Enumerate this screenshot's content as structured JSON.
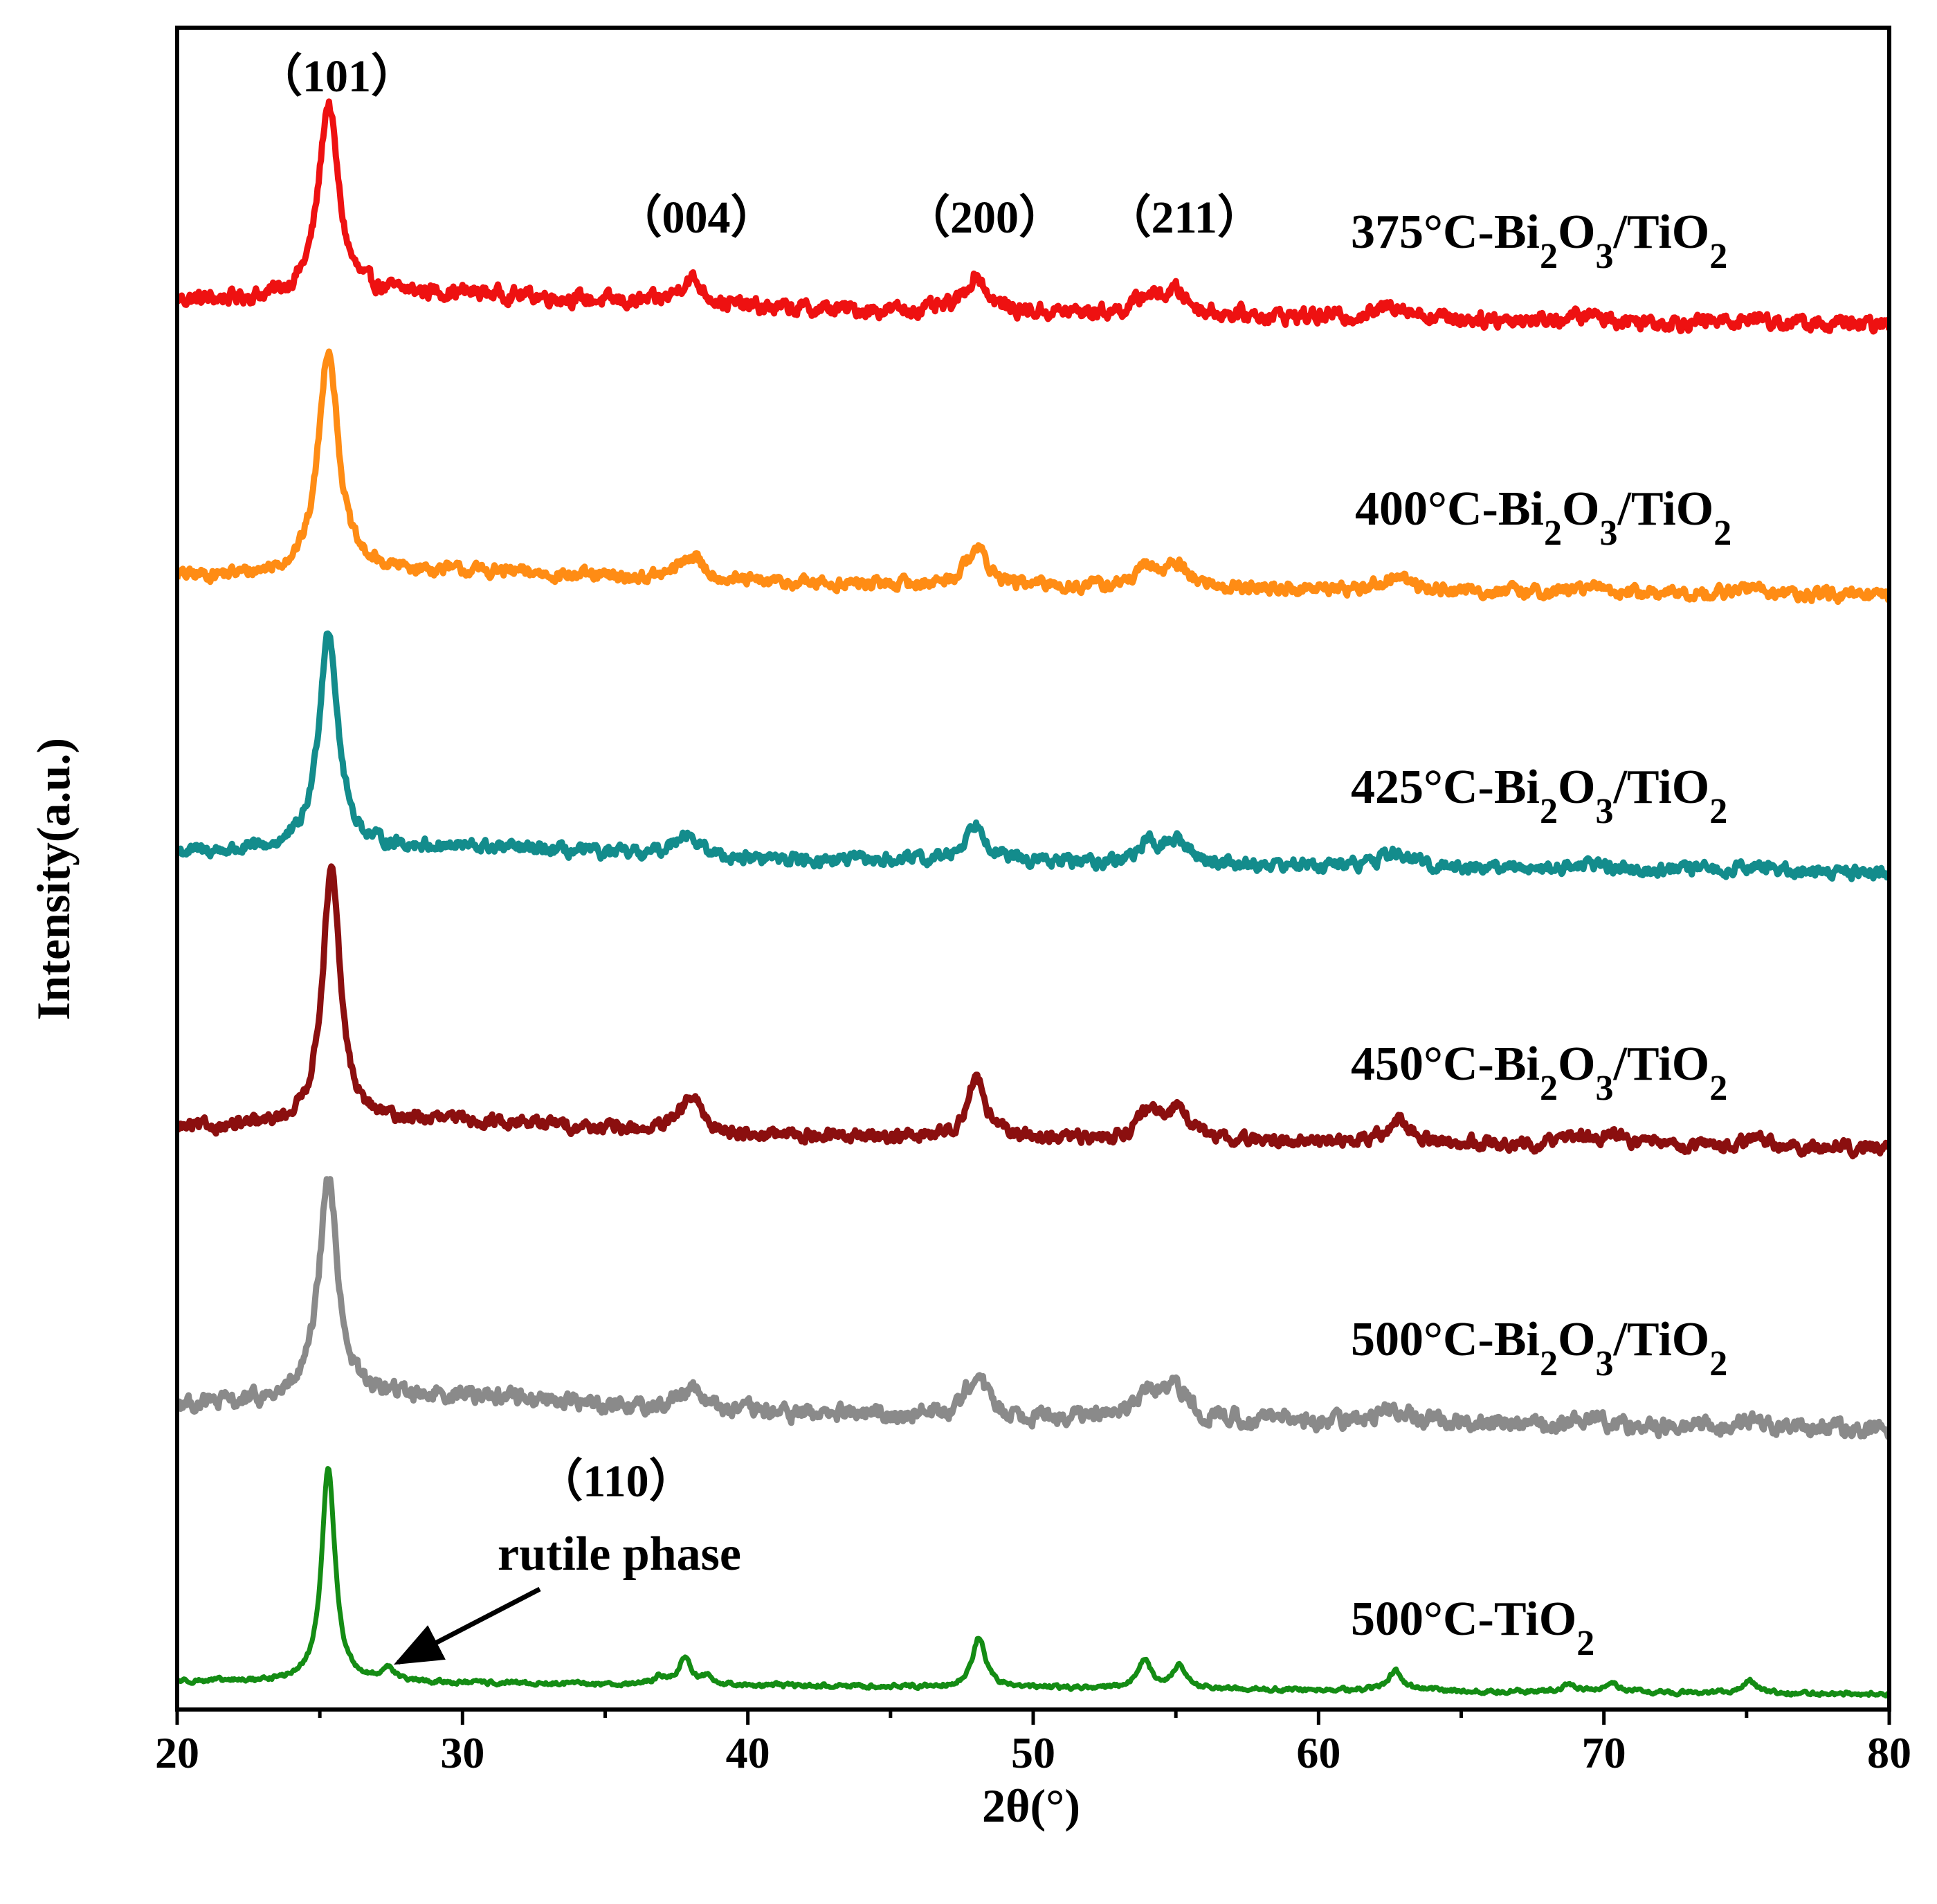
{
  "chart_data": {
    "type": "line",
    "title": "",
    "xlabel": "2θ(°)",
    "ylabel": "Intensity(a.u.)",
    "xlim": [
      20,
      80
    ],
    "xticks": [
      20,
      30,
      40,
      50,
      60,
      70,
      80
    ],
    "xtick_labels": [
      "20",
      "30",
      "40",
      "50",
      "60",
      "70",
      "80"
    ],
    "ylim": [
      0,
      6
    ],
    "grid": false,
    "series": [
      {
        "name": "375°C-Bi2O3/TiO2",
        "label_main": "375°C-Bi",
        "label_sub1": "2",
        "label_mid": "O",
        "label_sub2": "3",
        "label_tail": "/TiO",
        "label_sub3": "2",
        "color": "#ee1111",
        "offset": 5,
        "noise": 0.022,
        "baseline_slope": -0.0015,
        "humps": [
          {
            "x": 30,
            "h": 0.04,
            "w": 4
          }
        ],
        "peaks": [
          {
            "x": 25.3,
            "h": 0.7,
            "w": 0.42
          },
          {
            "x": 38.0,
            "h": 0.1,
            "w": 0.55
          },
          {
            "x": 48.0,
            "h": 0.13,
            "w": 0.45
          },
          {
            "x": 54.0,
            "h": 0.06,
            "w": 0.45
          },
          {
            "x": 55.0,
            "h": 0.08,
            "w": 0.55
          },
          {
            "x": 62.7,
            "h": 0.05,
            "w": 0.6
          },
          {
            "x": 69.5,
            "h": 0.02,
            "w": 0.6
          },
          {
            "x": 75.2,
            "h": 0.02,
            "w": 0.6
          }
        ]
      },
      {
        "name": "400°C-Bi2O3/TiO2",
        "label_main": "400°C-Bi",
        "label_sub1": "2",
        "label_mid": "O",
        "label_sub2": "3",
        "label_tail": "/TiO",
        "label_sub3": "2",
        "color": "#ff8c14",
        "offset": 4,
        "noise": 0.018,
        "baseline_slope": -0.0012,
        "humps": [
          {
            "x": 30,
            "h": 0.03,
            "w": 4
          }
        ],
        "peaks": [
          {
            "x": 25.3,
            "h": 0.82,
            "w": 0.42
          },
          {
            "x": 38.0,
            "h": 0.09,
            "w": 0.55
          },
          {
            "x": 48.0,
            "h": 0.14,
            "w": 0.45
          },
          {
            "x": 54.0,
            "h": 0.06,
            "w": 0.45
          },
          {
            "x": 55.0,
            "h": 0.08,
            "w": 0.55
          },
          {
            "x": 62.7,
            "h": 0.05,
            "w": 0.6
          },
          {
            "x": 69.5,
            "h": 0.02,
            "w": 0.6
          },
          {
            "x": 75.2,
            "h": 0.025,
            "w": 0.6
          }
        ]
      },
      {
        "name": "425°C-Bi2O3/TiO2",
        "label_main": "425°C-Bi",
        "label_sub1": "2",
        "label_mid": "O",
        "label_sub2": "3",
        "label_tail": "/TiO",
        "label_sub3": "2",
        "color": "#138c8c",
        "offset": 3,
        "noise": 0.018,
        "baseline_slope": -0.0012,
        "humps": [
          {
            "x": 30,
            "h": 0.03,
            "w": 4
          }
        ],
        "peaks": [
          {
            "x": 25.3,
            "h": 0.8,
            "w": 0.4
          },
          {
            "x": 37.8,
            "h": 0.09,
            "w": 0.5
          },
          {
            "x": 48.0,
            "h": 0.14,
            "w": 0.45
          },
          {
            "x": 54.0,
            "h": 0.06,
            "w": 0.45
          },
          {
            "x": 55.0,
            "h": 0.08,
            "w": 0.55
          },
          {
            "x": 62.7,
            "h": 0.05,
            "w": 0.6
          },
          {
            "x": 69.5,
            "h": 0.02,
            "w": 0.6
          },
          {
            "x": 75.2,
            "h": 0.02,
            "w": 0.6
          }
        ]
      },
      {
        "name": "450°C-Bi2O3/TiO2",
        "label_main": "450°C-Bi",
        "label_sub1": "2",
        "label_mid": "O",
        "label_sub2": "3",
        "label_tail": "/TiO",
        "label_sub3": "2",
        "color": "#8b0f0f",
        "offset": 2,
        "noise": 0.018,
        "baseline_slope": -0.0012,
        "humps": [
          {
            "x": 30,
            "h": 0.04,
            "w": 4
          }
        ],
        "peaks": [
          {
            "x": 25.4,
            "h": 0.92,
            "w": 0.38
          },
          {
            "x": 38.0,
            "h": 0.13,
            "w": 0.45
          },
          {
            "x": 48.0,
            "h": 0.22,
            "w": 0.38
          },
          {
            "x": 54.0,
            "h": 0.1,
            "w": 0.4
          },
          {
            "x": 55.1,
            "h": 0.12,
            "w": 0.45
          },
          {
            "x": 62.8,
            "h": 0.08,
            "w": 0.5
          },
          {
            "x": 69.0,
            "h": 0.03,
            "w": 0.5
          },
          {
            "x": 70.3,
            "h": 0.04,
            "w": 0.5
          },
          {
            "x": 75.2,
            "h": 0.03,
            "w": 0.5
          }
        ]
      },
      {
        "name": "500°C-Bi2O3/TiO2",
        "label_main": "500°C-Bi",
        "label_sub1": "2",
        "label_mid": "O",
        "label_sub2": "3",
        "label_tail": "/TiO",
        "label_sub3": "2",
        "color": "#8a8a8a",
        "offset": 1,
        "noise": 0.024,
        "baseline_slope": -0.0015,
        "humps": [
          {
            "x": 30,
            "h": 0.05,
            "w": 4
          }
        ],
        "peaks": [
          {
            "x": 25.3,
            "h": 0.8,
            "w": 0.4
          },
          {
            "x": 38.0,
            "h": 0.09,
            "w": 0.5
          },
          {
            "x": 48.0,
            "h": 0.16,
            "w": 0.42
          },
          {
            "x": 54.0,
            "h": 0.09,
            "w": 0.45
          },
          {
            "x": 55.0,
            "h": 0.11,
            "w": 0.5
          },
          {
            "x": 62.7,
            "h": 0.05,
            "w": 0.55
          },
          {
            "x": 69.5,
            "h": 0.02,
            "w": 0.6
          },
          {
            "x": 75.2,
            "h": 0.02,
            "w": 0.6
          }
        ]
      },
      {
        "name": "500°C-TiO2",
        "label_main": "500°C-TiO",
        "label_sub1": "2",
        "label_mid": "",
        "label_sub2": "",
        "label_tail": "",
        "label_sub3": "",
        "color": "#148c14",
        "offset": 0,
        "noise": 0.006,
        "baseline_slope": -0.0008,
        "humps": [],
        "peaks": [
          {
            "x": 25.3,
            "h": 0.78,
            "w": 0.28
          },
          {
            "x": 27.4,
            "h": 0.05,
            "w": 0.25
          },
          {
            "x": 36.9,
            "h": 0.03,
            "w": 0.22
          },
          {
            "x": 37.8,
            "h": 0.1,
            "w": 0.25
          },
          {
            "x": 38.6,
            "h": 0.03,
            "w": 0.22
          },
          {
            "x": 48.1,
            "h": 0.18,
            "w": 0.28
          },
          {
            "x": 53.9,
            "h": 0.1,
            "w": 0.28
          },
          {
            "x": 55.1,
            "h": 0.08,
            "w": 0.28
          },
          {
            "x": 62.7,
            "h": 0.07,
            "w": 0.3
          },
          {
            "x": 68.8,
            "h": 0.03,
            "w": 0.28
          },
          {
            "x": 70.3,
            "h": 0.03,
            "w": 0.28
          },
          {
            "x": 75.1,
            "h": 0.05,
            "w": 0.28
          }
        ]
      }
    ],
    "peak_labels": [
      {
        "text": "（101）",
        "x": 25.3
      },
      {
        "text": "（004）",
        "x": 37.9
      },
      {
        "text": "（200）",
        "x": 48.0
      },
      {
        "text": "（211）",
        "x": 55.0
      }
    ],
    "annotation": {
      "hkl": "（110）",
      "text": "rutile phase",
      "target_x": 27.4
    }
  }
}
